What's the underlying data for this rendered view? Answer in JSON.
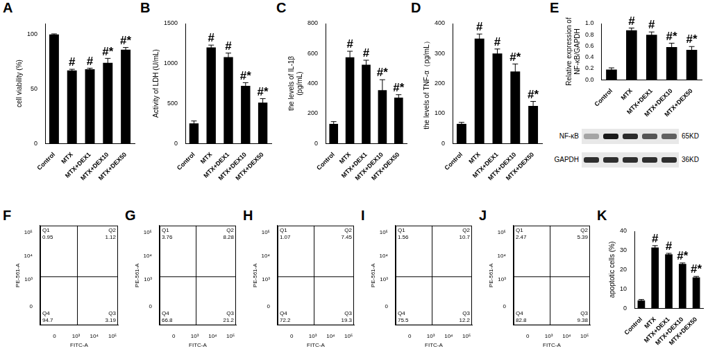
{
  "chart_data": [
    {
      "panel": "A",
      "type": "bar",
      "categories": [
        "Control",
        "MTX",
        "MTX+DEX1",
        "MTX+DEX10",
        "MTX+DEX50"
      ],
      "values": [
        100,
        67,
        68,
        74,
        86
      ],
      "errors": [
        0.5,
        1,
        1,
        4,
        2
      ],
      "significance": [
        null,
        "#",
        "#",
        "#*",
        "#*"
      ],
      "color": "#000000",
      "y_label": "cell viability (%)",
      "ylim": [
        0,
        110
      ],
      "yticks": [
        0,
        50,
        100
      ],
      "grid": false
    },
    {
      "panel": "B",
      "type": "bar",
      "categories": [
        "Control",
        "MTX",
        "MTX+DEX1",
        "MTX+DEX10",
        "MTX+DEX50"
      ],
      "values": [
        250,
        1200,
        1080,
        720,
        510
      ],
      "errors": [
        30,
        30,
        50,
        40,
        50
      ],
      "significance": [
        null,
        "#",
        "#",
        "#*",
        "#*"
      ],
      "color": "#000000",
      "y_label": "Activity of LDH (U/mL)",
      "ylim": [
        0,
        1500
      ],
      "yticks": [
        0,
        500,
        1000,
        1500
      ],
      "grid": false
    },
    {
      "panel": "C",
      "type": "bar",
      "categories": [
        "Control",
        "MTX",
        "MTX+DEX1",
        "MTX+DEX10",
        "MTX+DEX50"
      ],
      "values": [
        130,
        575,
        525,
        355,
        305
      ],
      "errors": [
        15,
        40,
        30,
        70,
        20
      ],
      "significance": [
        null,
        "#",
        "#",
        "#*",
        "#*"
      ],
      "color": "#000000",
      "y_label": [
        "the levels of IL-1β",
        "(pg/mL)"
      ],
      "ylim": [
        0,
        800
      ],
      "yticks": [
        0,
        200,
        400,
        600,
        800
      ],
      "grid": false
    },
    {
      "panel": "D",
      "type": "bar",
      "categories": [
        "Control",
        "MTX",
        "MTX+DEX1",
        "MTX+DEX10",
        "MTX+DEX50"
      ],
      "values": [
        65,
        350,
        300,
        240,
        125
      ],
      "errors": [
        5,
        15,
        15,
        25,
        15
      ],
      "significance": [
        null,
        "#",
        "#",
        "#*",
        "#*"
      ],
      "color": "#000000",
      "y_label": "the levels of TNF-α（pg/mL）",
      "ylim": [
        0,
        400
      ],
      "yticks": [
        0,
        100,
        200,
        300,
        400
      ],
      "grid": false
    },
    {
      "panel": "E",
      "type": "bar",
      "categories": [
        "Control",
        "MTX",
        "MTX+DEX1",
        "MTX+DEX10",
        "MTX+DEX50"
      ],
      "values": [
        0.18,
        0.88,
        0.8,
        0.58,
        0.53
      ],
      "errors": [
        0.03,
        0.04,
        0.05,
        0.07,
        0.06
      ],
      "significance": [
        null,
        "#",
        "#",
        "#*",
        "#*"
      ],
      "color": "#000000",
      "y_label": [
        "Relative expression of",
        "NF-κB/GAPDH"
      ],
      "ylim": [
        0,
        1
      ],
      "yticks": [
        {
          "value": 0,
          "label": "0.0"
        },
        0.2,
        0.4,
        0.6,
        0.8,
        {
          "value": 1,
          "label": "1.0"
        }
      ],
      "grid": false,
      "blot": [
        {
          "name": "NF-κB",
          "size": "65KD"
        },
        {
          "name": "GAPDH",
          "size": "36KD"
        }
      ]
    },
    {
      "panel": "F",
      "type": "quadrant",
      "x_label": "FITC-A",
      "y_label": "PE-561-A",
      "xlim": [
        -400,
        200000
      ],
      "ylim": [
        -400,
        200000
      ],
      "xticks": [
        0,
        {
          "value": 1000,
          "label": "10³"
        },
        {
          "value": 10000,
          "label": "10⁴"
        },
        {
          "value": 100000,
          "label": "10⁵"
        }
      ],
      "yticks": [
        0,
        {
          "value": 1000,
          "label": "10³"
        },
        {
          "value": 10000,
          "label": "10⁴"
        },
        {
          "value": 100000,
          "label": "10⁵"
        }
      ],
      "quadrant_gates": {
        "x": 1200,
        "y": 1300
      },
      "quadrants": [
        {
          "name": "Q1",
          "value": 0.95
        },
        {
          "name": "Q2",
          "value": 1.12
        },
        {
          "name": "Q3",
          "value": 3.19
        },
        {
          "name": "Q4",
          "value": 94.7
        }
      ]
    },
    {
      "panel": "G",
      "type": "quadrant",
      "x_label": "FITC-A",
      "y_label": "PE-561-A",
      "xlim": [
        -400,
        200000
      ],
      "ylim": [
        -400,
        200000
      ],
      "xticks": [
        0,
        {
          "value": 1000,
          "label": "10³"
        },
        {
          "value": 10000,
          "label": "10⁴"
        },
        {
          "value": 100000,
          "label": "10⁵"
        }
      ],
      "yticks": [
        0,
        {
          "value": 1000,
          "label": "10³"
        },
        {
          "value": 10000,
          "label": "10⁴"
        },
        {
          "value": 100000,
          "label": "10⁵"
        }
      ],
      "quadrant_gates": {
        "x": 1200,
        "y": 1300
      },
      "quadrants": [
        {
          "name": "Q1",
          "value": 3.76
        },
        {
          "name": "Q2",
          "value": 8.28
        },
        {
          "name": "Q3",
          "value": 21.2
        },
        {
          "name": "Q4",
          "value": 66.8
        }
      ]
    },
    {
      "panel": "H",
      "type": "quadrant",
      "x_label": "FITC-A",
      "y_label": "PE-561-A",
      "xlim": [
        -400,
        200000
      ],
      "ylim": [
        -400,
        200000
      ],
      "xticks": [
        0,
        {
          "value": 1000,
          "label": "10³"
        },
        {
          "value": 10000,
          "label": "10⁴"
        },
        {
          "value": 100000,
          "label": "10⁵"
        }
      ],
      "yticks": [
        0,
        {
          "value": 1000,
          "label": "10³"
        },
        {
          "value": 10000,
          "label": "10⁴"
        },
        {
          "value": 100000,
          "label": "10⁵"
        }
      ],
      "quadrant_gates": {
        "x": 1200,
        "y": 1300
      },
      "quadrants": [
        {
          "name": "Q1",
          "value": 1.07
        },
        {
          "name": "Q2",
          "value": 7.45
        },
        {
          "name": "Q3",
          "value": 19.3
        },
        {
          "name": "Q4",
          "value": 72.2
        }
      ]
    },
    {
      "panel": "I",
      "type": "quadrant",
      "x_label": "FITC-A",
      "y_label": "PE-561-A",
      "xlim": [
        -400,
        200000
      ],
      "ylim": [
        -400,
        200000
      ],
      "xticks": [
        0,
        {
          "value": 1000,
          "label": "10³"
        },
        {
          "value": 10000,
          "label": "10⁴"
        },
        {
          "value": 100000,
          "label": "10⁵"
        }
      ],
      "yticks": [
        0,
        {
          "value": 1000,
          "label": "10³"
        },
        {
          "value": 10000,
          "label": "10⁴"
        },
        {
          "value": 100000,
          "label": "10⁵"
        }
      ],
      "quadrant_gates": {
        "x": 1200,
        "y": 1300
      },
      "quadrants": [
        {
          "name": "Q1",
          "value": 1.56
        },
        {
          "name": "Q2",
          "value": 10.7
        },
        {
          "name": "Q3",
          "value": 12.2
        },
        {
          "name": "Q4",
          "value": 75.5
        }
      ]
    },
    {
      "panel": "J",
      "type": "quadrant",
      "x_label": "FITC-A",
      "y_label": "PE-561-A",
      "xlim": [
        -400,
        200000
      ],
      "ylim": [
        -400,
        200000
      ],
      "xticks": [
        0,
        {
          "value": 1000,
          "label": "10³"
        },
        {
          "value": 10000,
          "label": "10⁴"
        },
        {
          "value": 100000,
          "label": "10⁵"
        }
      ],
      "yticks": [
        0,
        {
          "value": 1000,
          "label": "10³"
        },
        {
          "value": 10000,
          "label": "10⁴"
        },
        {
          "value": 100000,
          "label": "10⁵"
        }
      ],
      "quadrant_gates": {
        "x": 1200,
        "y": 1300
      },
      "quadrants": [
        {
          "name": "Q1",
          "value": 2.47
        },
        {
          "name": "Q2",
          "value": 5.39
        },
        {
          "name": "Q3",
          "value": 9.38
        },
        {
          "name": "Q4",
          "value": 82.8
        }
      ]
    },
    {
      "panel": "K",
      "type": "bar",
      "categories": [
        "Control",
        "MTX",
        "MTX+DEX1",
        "MTX+DEX10",
        "MTX+DEX50"
      ],
      "values": [
        4,
        31.5,
        28,
        23,
        16
      ],
      "errors": [
        0.5,
        1,
        0.5,
        0.5,
        0.5
      ],
      "significance": [
        null,
        "#",
        "#",
        "#*",
        "#*"
      ],
      "color": "#000000",
      "y_label": "apoptotic cells (%)",
      "ylim": [
        0,
        40
      ],
      "yticks": [
        0,
        10,
        20,
        30,
        40
      ],
      "grid": false
    }
  ]
}
